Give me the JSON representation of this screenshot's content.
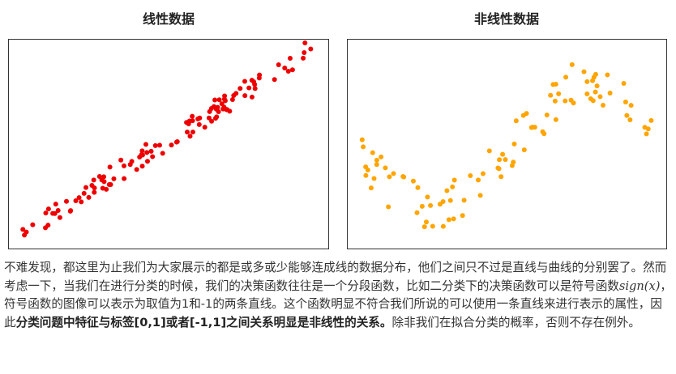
{
  "figures": [
    {
      "title": "线性数据"
    },
    {
      "title": "非线性数据"
    }
  ],
  "paragraph": {
    "text_before": "不难发现，都这里为止我们为大家展示的都是或多或少能够连成线的数据分布，他们之间只不过是直线与曲线的分别罢了。然而考虑一下，当我们在进行分类的时候，我们的决策函数往往是一个分段函数，比如二分类下的决策函数可以是符号函数",
    "math": "sign(x)",
    "text_middle": "，符号函数的图像可以表示为取值为1和-1的两条直线。这个函数明显不符合我们所说的可以使用一条直线来进行表示的属性，因此",
    "bold": "分类问题中特征与标签[0,1]或者[-1,1]之间关系明显是非线性的关系。",
    "text_after": "除非我们在拟合分类的概率，否则不存在例外。"
  }
}
